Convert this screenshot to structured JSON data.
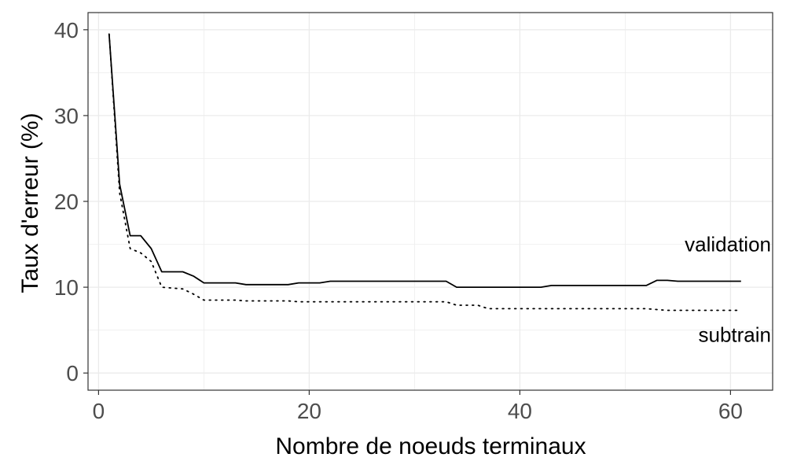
{
  "chart_data": {
    "type": "line",
    "title": "",
    "xlabel": "Nombre de noeuds terminaux",
    "ylabel": "Taux d'erreur (%)",
    "xlim": [
      -1,
      64
    ],
    "ylim": [
      -2,
      42
    ],
    "x_ticks": [
      0,
      20,
      40,
      60
    ],
    "y_ticks": [
      0,
      10,
      20,
      30,
      40
    ],
    "x_tick_labels": [
      "0",
      "20",
      "40",
      "60"
    ],
    "y_tick_labels": [
      "0",
      "10",
      "20",
      "30",
      "40"
    ],
    "grid": true,
    "legend": "direct labels at line ends",
    "series": [
      {
        "name": "validation",
        "style": "solid",
        "color": "#000000",
        "x": [
          1,
          2,
          3,
          4,
          5,
          6,
          7,
          8,
          9,
          10,
          11,
          12,
          13,
          14,
          15,
          16,
          17,
          18,
          19,
          20,
          21,
          22,
          23,
          24,
          25,
          26,
          27,
          28,
          29,
          30,
          31,
          32,
          33,
          34,
          35,
          36,
          37,
          38,
          39,
          40,
          41,
          42,
          43,
          44,
          45,
          46,
          47,
          48,
          49,
          50,
          51,
          52,
          53,
          54,
          55,
          56,
          57,
          58,
          59,
          60,
          61
        ],
        "y": [
          39.5,
          22.0,
          16.0,
          16.0,
          14.5,
          11.8,
          11.8,
          11.8,
          11.3,
          10.5,
          10.5,
          10.5,
          10.5,
          10.3,
          10.3,
          10.3,
          10.3,
          10.3,
          10.5,
          10.5,
          10.5,
          10.7,
          10.7,
          10.7,
          10.7,
          10.7,
          10.7,
          10.7,
          10.7,
          10.7,
          10.7,
          10.7,
          10.7,
          10.0,
          10.0,
          10.0,
          10.0,
          10.0,
          10.0,
          10.0,
          10.0,
          10.0,
          10.2,
          10.2,
          10.2,
          10.2,
          10.2,
          10.2,
          10.2,
          10.2,
          10.2,
          10.2,
          10.8,
          10.8,
          10.7,
          10.7,
          10.7,
          10.7,
          10.7,
          10.7,
          10.7
        ]
      },
      {
        "name": "subtrain",
        "style": "dotted",
        "color": "#000000",
        "x": [
          1,
          2,
          3,
          4,
          5,
          6,
          7,
          8,
          9,
          10,
          11,
          12,
          13,
          14,
          15,
          16,
          17,
          18,
          19,
          20,
          21,
          22,
          23,
          24,
          25,
          26,
          27,
          28,
          29,
          30,
          31,
          32,
          33,
          34,
          35,
          36,
          37,
          38,
          39,
          40,
          41,
          42,
          43,
          44,
          45,
          46,
          47,
          48,
          49,
          50,
          51,
          52,
          53,
          54,
          55,
          56,
          57,
          58,
          59,
          60,
          61
        ],
        "y": [
          39.5,
          21.0,
          14.5,
          14.0,
          13.0,
          10.0,
          9.9,
          9.8,
          9.2,
          8.5,
          8.5,
          8.5,
          8.5,
          8.4,
          8.4,
          8.4,
          8.4,
          8.4,
          8.3,
          8.3,
          8.3,
          8.3,
          8.3,
          8.3,
          8.3,
          8.3,
          8.3,
          8.3,
          8.3,
          8.3,
          8.3,
          8.3,
          8.3,
          7.9,
          7.9,
          7.9,
          7.5,
          7.5,
          7.5,
          7.5,
          7.5,
          7.5,
          7.5,
          7.5,
          7.5,
          7.5,
          7.5,
          7.5,
          7.5,
          7.5,
          7.5,
          7.5,
          7.4,
          7.3,
          7.3,
          7.3,
          7.3,
          7.3,
          7.3,
          7.3,
          7.3
        ]
      }
    ]
  },
  "colors": {
    "background": "#ffffff",
    "panel_border": "#333333",
    "grid": "#ebebeb",
    "tick_text": "#4d4d4d",
    "line": "#000000"
  }
}
